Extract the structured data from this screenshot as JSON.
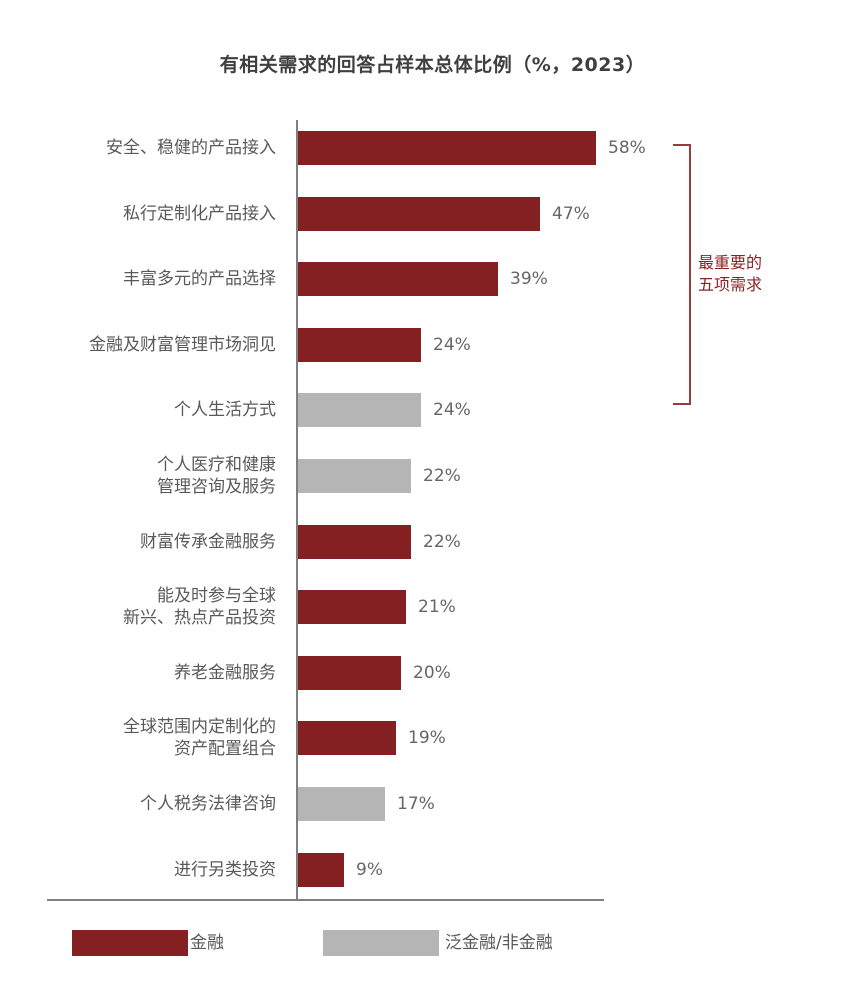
{
  "title": "有相关需求的回答占样本总体比例（%，2023）",
  "colors": {
    "finance": "#841f22",
    "non_finance": "#b5b5b5",
    "bracket": "#9b3b3b",
    "axis": "#7f7f7f"
  },
  "bracket": {
    "label_line1": "最重要的",
    "label_line2": "五项需求"
  },
  "legend": [
    {
      "label": "金融",
      "color": "#841f22"
    },
    {
      "label": "泛金融/非金融",
      "color": "#b5b5b5"
    }
  ],
  "chart_data": {
    "type": "bar",
    "orientation": "horizontal",
    "title": "有相关需求的回答占样本总体比例（%，2023）",
    "xlabel": "",
    "ylabel": "",
    "xlim": [
      0,
      60
    ],
    "grid": false,
    "legend_position": "bottom",
    "categories": [
      "安全、稳健的产品接入",
      "私行定制化产品接入",
      "丰富多元的产品选择",
      "金融及财富管理市场洞见",
      "个人生活方式",
      "个人医疗和健康管理咨询及服务",
      "财富传承金融服务",
      "能及时参与全球新兴、热点产品投资",
      "养老金融服务",
      "全球范围内定制化的资产配置组合",
      "个人税务法律咨询",
      "进行另类投资"
    ],
    "values": [
      58,
      47,
      39,
      24,
      24,
      22,
      22,
      21,
      20,
      19,
      17,
      9
    ],
    "series_membership": [
      "金融",
      "金融",
      "金融",
      "金融",
      "泛金融/非金融",
      "泛金融/非金融",
      "金融",
      "金融",
      "金融",
      "金融",
      "泛金融/非金融",
      "金融"
    ],
    "series": [
      {
        "name": "金融",
        "values": [
          58,
          47,
          39,
          24,
          null,
          null,
          22,
          21,
          20,
          19,
          null,
          9
        ]
      },
      {
        "name": "泛金融/非金融",
        "values": [
          null,
          null,
          null,
          null,
          24,
          22,
          null,
          null,
          null,
          null,
          17,
          null
        ]
      }
    ],
    "annotations": [
      {
        "text": "最重要的五项需求",
        "spans_categories": [
          0,
          4
        ]
      }
    ]
  },
  "rows": [
    {
      "line1": "安全、稳健的产品接入",
      "line2": "",
      "value": 58,
      "value_label": "58%",
      "type": "finance"
    },
    {
      "line1": "私行定制化产品接入",
      "line2": "",
      "value": 47,
      "value_label": "47%",
      "type": "finance"
    },
    {
      "line1": "丰富多元的产品选择",
      "line2": "",
      "value": 39,
      "value_label": "39%",
      "type": "finance"
    },
    {
      "line1": "金融及财富管理市场洞见",
      "line2": "",
      "value": 24,
      "value_label": "24%",
      "type": "finance"
    },
    {
      "line1": "个人生活方式",
      "line2": "",
      "value": 24,
      "value_label": "24%",
      "type": "non_finance"
    },
    {
      "line1": "个人医疗和健康",
      "line2": "管理咨询及服务",
      "value": 22,
      "value_label": "22%",
      "type": "non_finance"
    },
    {
      "line1": "财富传承金融服务",
      "line2": "",
      "value": 22,
      "value_label": "22%",
      "type": "finance"
    },
    {
      "line1": "能及时参与全球",
      "line2": "新兴、热点产品投资",
      "value": 21,
      "value_label": "21%",
      "type": "finance"
    },
    {
      "line1": "养老金融服务",
      "line2": "",
      "value": 20,
      "value_label": "20%",
      "type": "finance"
    },
    {
      "line1": "全球范围内定制化的",
      "line2": "资产配置组合",
      "value": 19,
      "value_label": "19%",
      "type": "finance"
    },
    {
      "line1": "个人税务法律咨询",
      "line2": "",
      "value": 17,
      "value_label": "17%",
      "type": "non_finance"
    },
    {
      "line1": "进行另类投资",
      "line2": "",
      "value": 9,
      "value_label": "9%",
      "type": "finance"
    }
  ]
}
